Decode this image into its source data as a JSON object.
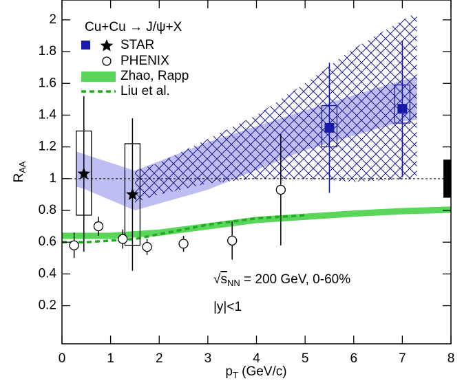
{
  "chart_data": {
    "type": "scatter",
    "x_label": [
      "p",
      "T",
      " (GeV/c)"
    ],
    "y_label": [
      "R",
      "AA"
    ],
    "legend_title": "Cu+Cu → J/ψ+X",
    "annotations": [
      [
        "√",
        "s",
        "NN",
        " = 200 GeV, 0-60%"
      ],
      "|y|<1"
    ],
    "xlim": [
      0,
      8
    ],
    "ylim": [
      -0.04,
      2.125
    ],
    "xticks": [
      0,
      1,
      2,
      3,
      4,
      5,
      6,
      7,
      8
    ],
    "yticks": [
      0.2,
      0.4,
      0.6,
      0.8,
      1,
      1.2,
      1.4,
      1.6,
      1.8,
      2
    ],
    "reference_line": 1,
    "normalization": {
      "low": 0.88,
      "high": 1.12,
      "x": 8,
      "color": "#000000"
    },
    "bands": [
      {
        "x": [
          0.3,
          0.5,
          1.5,
          3,
          5,
          7,
          7.3
        ],
        "low": [
          0.95,
          0.93,
          0.8,
          0.93,
          1.18,
          1.36,
          1.37
        ],
        "high": [
          1.17,
          1.15,
          1.05,
          1.23,
          1.43,
          1.62,
          1.64
        ],
        "color": "#b3b3f0"
      },
      {
        "x": [
          1.5,
          2,
          3,
          4,
          5,
          6,
          7.3
        ],
        "low": [
          0.85,
          0.9,
          0.97,
          1.0,
          1.0,
          0.98,
          1.0
        ],
        "high": [
          1.05,
          1.1,
          1.25,
          1.4,
          1.6,
          1.82,
          2.05
        ],
        "color": "#1a1a8c",
        "hatch": true
      }
    ],
    "series": [
      {
        "name": "Zhao, Rapp",
        "kind": "band",
        "color": "#5ad65a",
        "x": [
          0,
          1,
          2,
          3,
          4,
          5,
          6,
          7,
          8
        ],
        "low": [
          0.62,
          0.62,
          0.64,
          0.68,
          0.72,
          0.74,
          0.76,
          0.775,
          0.785
        ],
        "high": [
          0.66,
          0.66,
          0.68,
          0.72,
          0.76,
          0.78,
          0.8,
          0.815,
          0.825
        ]
      },
      {
        "name": "Liu et al.",
        "kind": "dashed",
        "color": "#22aa22",
        "x": [
          0,
          0.5,
          1,
          1.5,
          2,
          2.5,
          3,
          3.5,
          4,
          4.5,
          5
        ],
        "values": [
          0.6,
          0.6,
          0.61,
          0.62,
          0.65,
          0.68,
          0.71,
          0.73,
          0.75,
          0.76,
          0.77
        ]
      },
      {
        "name": "STAR",
        "kind": "points",
        "x": [
          0.45,
          1.45,
          5.5,
          7.0
        ],
        "values": [
          1.03,
          0.9,
          1.32,
          1.44
        ],
        "errors": [
          0.49,
          0.48,
          0.41,
          0.43
        ],
        "sys_low": [
          0.77,
          0.58,
          1.2,
          1.35
        ],
        "sys_high": [
          1.3,
          1.22,
          1.46,
          1.59
        ],
        "markers": [
          "star",
          "star",
          "square",
          "square"
        ],
        "colors": [
          "#000000",
          "#000000",
          "#1a1aaa",
          "#1a1aaa"
        ]
      },
      {
        "name": "PHENIX",
        "kind": "points",
        "x": [
          0.25,
          0.75,
          1.25,
          1.75,
          2.5,
          3.5,
          4.5
        ],
        "values": [
          0.58,
          0.7,
          0.62,
          0.57,
          0.59,
          0.61,
          0.93
        ],
        "errors": [
          0.08,
          0.06,
          0.06,
          0.05,
          0.05,
          0.12,
          0.35
        ],
        "markers": [
          "circle",
          "circle",
          "circle",
          "circle",
          "circle",
          "circle",
          "circle"
        ],
        "colors": [
          "#000000",
          "#000000",
          "#000000",
          "#000000",
          "#000000",
          "#000000",
          "#000000"
        ]
      }
    ]
  }
}
